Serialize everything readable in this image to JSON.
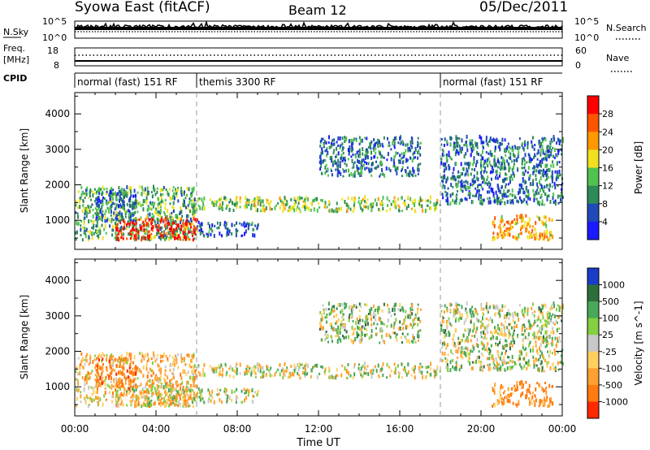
{
  "title": {
    "station": "Syowa East (fitACF)",
    "beam": "Beam 12",
    "date": "05/Dec/2011"
  },
  "noise_panel": {
    "left_label": "N.Sky",
    "right_label": "N.Search",
    "left_ticks": [
      "10^5",
      "10^0"
    ],
    "right_ticks": [
      "10^5",
      "10^0"
    ]
  },
  "freq_panel": {
    "left_label_line1": "Freq.",
    "left_label_line2": "[MHz]",
    "right_label": "Nave",
    "left_ticks": [
      "18",
      "8"
    ],
    "right_ticks": [
      "60",
      "0"
    ]
  },
  "cpid_panel": {
    "label": "CPID",
    "segments": [
      {
        "label": "normal (fast) 151 RF",
        "start_hour": 0,
        "end_hour": 6
      },
      {
        "label": "themis 3300 RF",
        "start_hour": 6,
        "end_hour": 18
      },
      {
        "label": "normal (fast) 151 RF",
        "start_hour": 18,
        "end_hour": 24
      }
    ]
  },
  "x_axis": {
    "label": "Time UT",
    "ticks": [
      "00:00",
      "04:00",
      "08:00",
      "12:00",
      "16:00",
      "20:00",
      "00:00"
    ],
    "range_hours": [
      0,
      24
    ]
  },
  "y_axis": {
    "label": "Slant Range [km]",
    "ticks": [
      "1000",
      "2000",
      "3000",
      "4000"
    ],
    "range_km": [
      180,
      4600
    ]
  },
  "colorbars": {
    "power": {
      "label": "Power [dB]",
      "ticks": [
        "4",
        "8",
        "12",
        "16",
        "20",
        "24",
        "28"
      ],
      "colors": [
        "#1a1aff",
        "#1f4ab8",
        "#2e8b57",
        "#4fc24f",
        "#f0e020",
        "#ff9900",
        "#ff5500",
        "#ff0000"
      ]
    },
    "velocity": {
      "label": "Velocity [m s^-1]",
      "ticks": [
        "1000",
        "500",
        "100",
        "25",
        "-25",
        "-100",
        "-500",
        "-1000"
      ],
      "colors": [
        "#1a3cc8",
        "#2e6e3a",
        "#49a85a",
        "#84d040",
        "#c8c8c8",
        "#ffd060",
        "#ffa030",
        "#ff7a10",
        "#ff2a00"
      ]
    }
  },
  "chart_data": {
    "type": "heatmap",
    "title": "Syowa East (fitACF)   Beam 12   05/Dec/2011",
    "xlabel": "Time UT",
    "ylabel": "Slant Range [km]",
    "xlim_hours": [
      0,
      24
    ],
    "ylim_km": [
      180,
      4600
    ],
    "power_scale_db": [
      0,
      30
    ],
    "velocity_scale_ms": [
      -1000,
      1000
    ],
    "echo_regions": [
      {
        "t_start": 0.0,
        "t_end": 6.0,
        "range_min_km": 400,
        "range_max_km": 1900,
        "power_db": 12,
        "velocity_ms": -150
      },
      {
        "t_start": 2.0,
        "t_end": 6.0,
        "range_min_km": 400,
        "range_max_km": 1000,
        "power_db": 28,
        "velocity_ms": -50
      },
      {
        "t_start": 1.0,
        "t_end": 3.0,
        "range_min_km": 900,
        "range_max_km": 1800,
        "power_db": 8,
        "velocity_ms": -400
      },
      {
        "t_start": 6.0,
        "t_end": 18.0,
        "range_min_km": 1200,
        "range_max_km": 1600,
        "power_db": 14,
        "velocity_ms": 0
      },
      {
        "t_start": 6.0,
        "t_end": 9.0,
        "range_min_km": 500,
        "range_max_km": 900,
        "power_db": 6,
        "velocity_ms": 0
      },
      {
        "t_start": 12.0,
        "t_end": 17.0,
        "range_min_km": 2200,
        "range_max_km": 3300,
        "power_db": 8,
        "velocity_ms": 80
      },
      {
        "t_start": 18.0,
        "t_end": 24.0,
        "range_min_km": 1400,
        "range_max_km": 3300,
        "power_db": 8,
        "velocity_ms": 30
      },
      {
        "t_start": 20.5,
        "t_end": 23.5,
        "range_min_km": 400,
        "range_max_km": 1100,
        "power_db": 20,
        "velocity_ms": -300
      }
    ]
  }
}
